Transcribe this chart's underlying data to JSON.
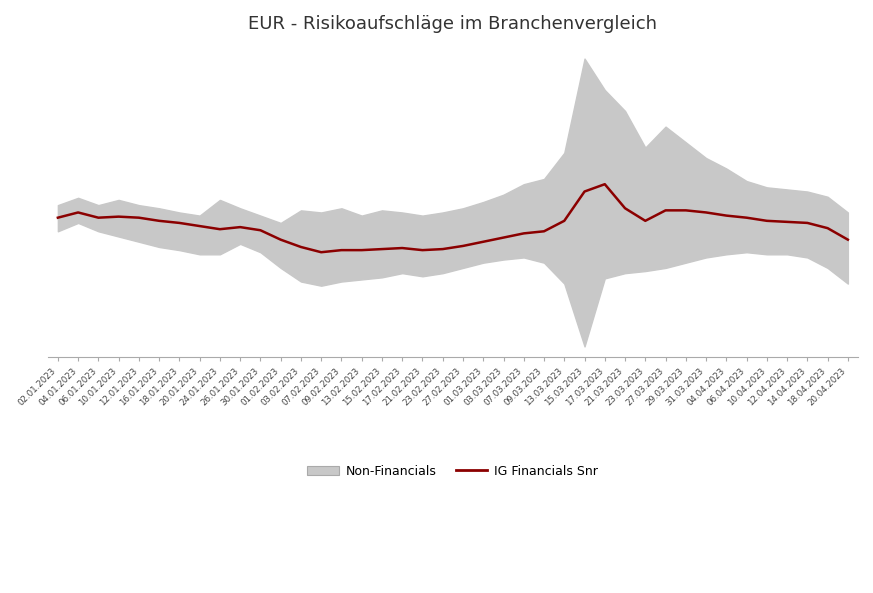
{
  "title": "EUR - Risikoaufschläge im Branchenvergleich",
  "title_fontsize": 13,
  "background_color": "#ffffff",
  "grid_color": "#cccccc",
  "fill_color": "#c8c8c8",
  "line_color": "#8b0000",
  "legend_labels": [
    "Non-Financials",
    "IG Financials Snr"
  ],
  "x_labels": [
    "02.01.2023",
    "04.01.2023",
    "06.01.2023",
    "10.01.2023",
    "12.01.2023",
    "16.01.2023",
    "18.01.2023",
    "20.01.2023",
    "24.01.2023",
    "26.01.2023",
    "30.01.2023",
    "01.02.2023",
    "03.02.2023",
    "07.02.2023",
    "09.02.2023",
    "13.02.2023",
    "15.02.2023",
    "17.02.2023",
    "21.02.2023",
    "23.02.2023",
    "27.02.2023",
    "01.03.2023",
    "03.03.2023",
    "07.03.2023",
    "09.03.2023",
    "13.03.2023",
    "15.03.2023",
    "17.03.2023",
    "21.03.2023",
    "23.03.2023",
    "27.03.2023",
    "29.03.2023",
    "31.03.2023",
    "04.04.2023",
    "06.04.2023",
    "10.04.2023",
    "12.04.2023",
    "14.04.2023",
    "18.04.2023",
    "20.04.2023"
  ],
  "upper": [
    155,
    162,
    155,
    160,
    155,
    152,
    148,
    145,
    160,
    152,
    145,
    138,
    150,
    148,
    152,
    145,
    150,
    148,
    145,
    148,
    152,
    158,
    165,
    175,
    180,
    205,
    295,
    265,
    245,
    210,
    230,
    215,
    200,
    190,
    178,
    172,
    170,
    168,
    163,
    148
  ],
  "lower": [
    130,
    138,
    130,
    125,
    120,
    115,
    112,
    108,
    108,
    118,
    110,
    95,
    82,
    78,
    82,
    84,
    86,
    90,
    87,
    90,
    95,
    100,
    103,
    105,
    100,
    80,
    20,
    85,
    90,
    92,
    95,
    100,
    105,
    108,
    110,
    108,
    108,
    105,
    95,
    80
  ],
  "line": [
    143,
    148,
    143,
    144,
    143,
    140,
    138,
    135,
    132,
    134,
    131,
    122,
    115,
    110,
    112,
    112,
    113,
    114,
    112,
    113,
    116,
    120,
    124,
    128,
    130,
    140,
    168,
    175,
    152,
    140,
    150,
    150,
    148,
    145,
    143,
    140,
    139,
    138,
    133,
    122
  ],
  "ylim_low": 10,
  "ylim_high": 310
}
